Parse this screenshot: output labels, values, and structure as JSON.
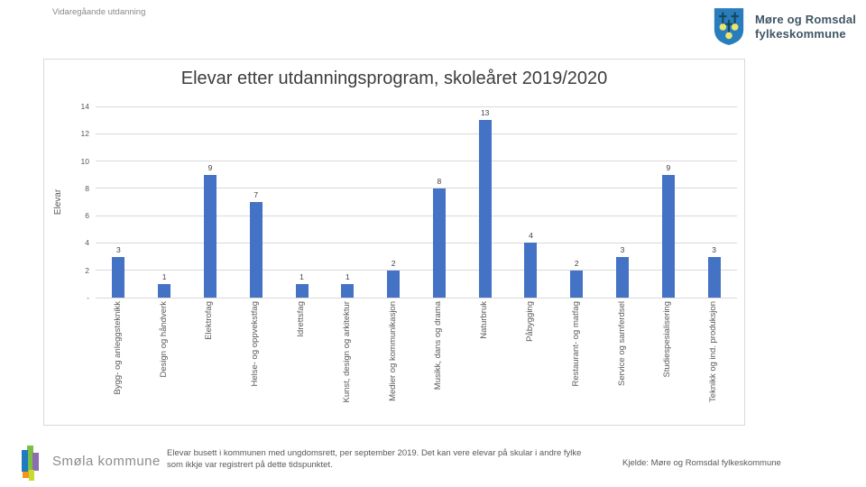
{
  "header": {
    "breadcrumb": "Vidaregåande utdanning",
    "org": {
      "name_line1": "Møre og Romsdal",
      "name_line2": "fylkeskommune",
      "logo": "coat-of-arms-shield-three-boat-stems"
    }
  },
  "chart_data": {
    "type": "bar",
    "title": "Elevar etter utdanningsprogram, skoleåret 2019/2020",
    "ylabel": "Elevar",
    "xlabel": "",
    "categories": [
      "Bygg- og anleggsteknikk",
      "Design og håndverk",
      "Elektrofag",
      "Helse- og oppvekstfag",
      "Idrettsfag",
      "Kunst, design og arkitektur",
      "Medier og kommunikasjon",
      "Musikk, dans og drama",
      "Naturbruk",
      "Påbygging",
      "Restaurant- og matfag",
      "Service og samferdsel",
      "Studiespesialisering",
      "Teknikk og ind. produksjon"
    ],
    "values": [
      3,
      1,
      9,
      7,
      1,
      1,
      2,
      8,
      13,
      4,
      2,
      3,
      9,
      3
    ],
    "ylim": [
      0,
      14
    ],
    "ytick_step": 2,
    "zero_tick_label": "-",
    "grid": true,
    "legend": "none",
    "data_labels": true,
    "bar_color": "#4472C4",
    "gridline_color": "#D9D9D9"
  },
  "footer": {
    "municipality": "Smøla kommune",
    "municipality_logo": "colored-bar-cluster",
    "municipality_logo_colors": [
      "#1F7ABE",
      "#7AC143",
      "#8E6DAE",
      "#F7941E",
      "#C8DA2B"
    ],
    "note": "Elevar busett i kommunen med ungdomsrett, per september 2019. Det kan vere elevar på skular i andre fylke som ikkje var registrert på dette tidspunktet.",
    "source": "Kjelde: Møre og Romsdal fylkeskommune"
  },
  "colors": {
    "shield_blue": "#2A7DBC",
    "shield_dark": "#14485C",
    "shield_bulb": "#E9E56F",
    "org_text": "#3F5564"
  }
}
